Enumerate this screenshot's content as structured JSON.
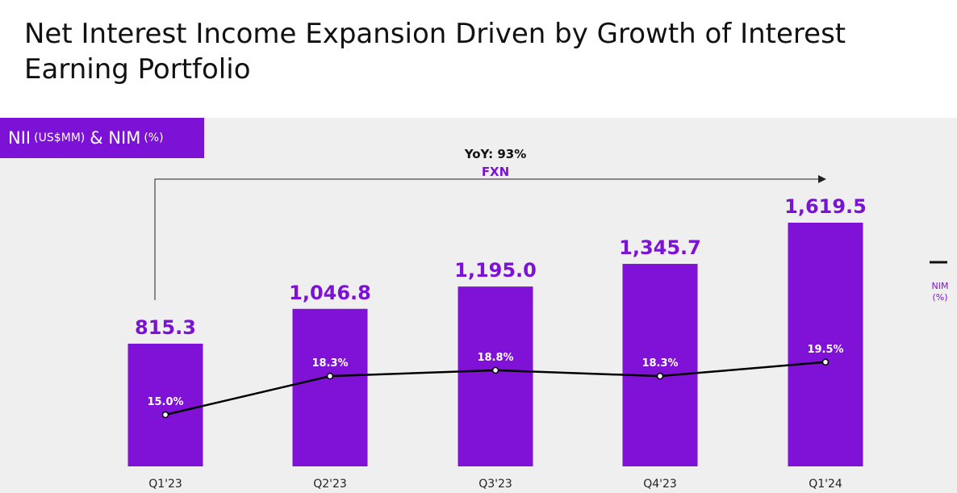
{
  "title": "Net Interest Income Expansion Driven by Growth of Interest Earning Portfolio",
  "tag": {
    "main": "NII",
    "unit1": "(US$MM)",
    "amp": "& NIM",
    "unit2": "(%)"
  },
  "annotation": {
    "yoy": "YoY: 93%",
    "fxn": "FXN"
  },
  "legend": {
    "line_label_1": "NIM",
    "line_label_2": "(%)"
  },
  "colors": {
    "bar": "#8011d6",
    "accent": "#7b12d6",
    "line": "#000000",
    "panel": "#efefef"
  },
  "chart_data": {
    "type": "bar",
    "categories": [
      "Q1'23",
      "Q2'23",
      "Q3'23",
      "Q4'23",
      "Q1'24"
    ],
    "series": [
      {
        "name": "NII",
        "values": [
          815.3,
          1046.8,
          1195.0,
          1345.7,
          1619.5
        ],
        "labels": [
          "815.3",
          "1,046.8",
          "1,195.0",
          "1,345.7",
          "1,619.5"
        ]
      },
      {
        "name": "NIM",
        "type": "line",
        "values": [
          15.0,
          18.3,
          18.8,
          18.3,
          19.5
        ],
        "labels": [
          "15.0%",
          "18.3%",
          "18.8%",
          "18.3%",
          "19.5%"
        ]
      }
    ],
    "title": "",
    "xlabel": "",
    "ylabel": ""
  }
}
